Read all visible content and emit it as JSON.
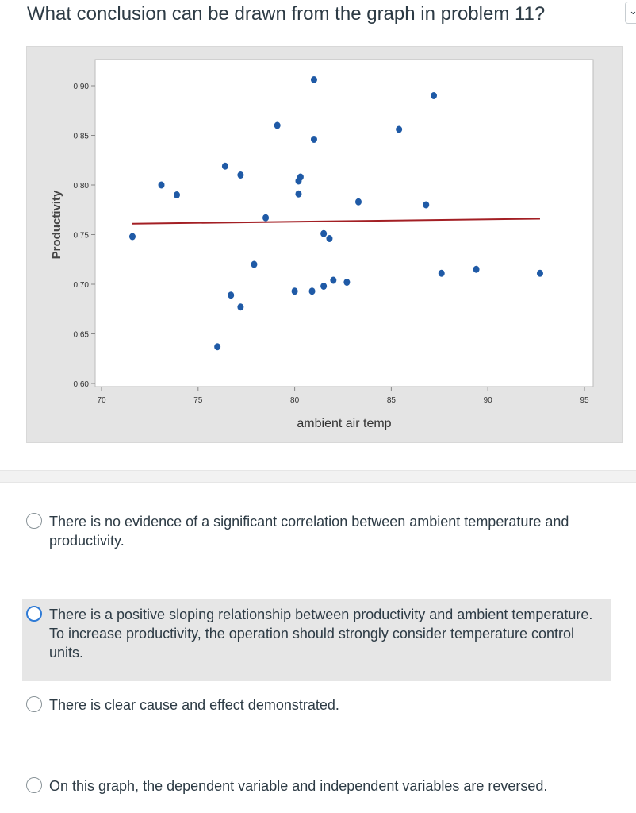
{
  "question": {
    "title": "What conclusion can be drawn from the graph in problem 11?"
  },
  "chart_data": {
    "type": "scatter",
    "xlabel": "ambient air temp",
    "ylabel": "Productivity",
    "xlim": [
      70,
      95
    ],
    "ylim": [
      0.6,
      0.9
    ],
    "xticks": [
      "70",
      "75",
      "80",
      "85",
      "90",
      "95"
    ],
    "yticks": [
      "0.60",
      "0.65",
      "0.70",
      "0.75",
      "0.80",
      "0.85",
      "0.90"
    ],
    "grid": false,
    "point_color": "#1f5aa6",
    "line_color": "#a31f24",
    "points": [
      [
        71.6,
        0.748
      ],
      [
        73.1,
        0.8
      ],
      [
        73.9,
        0.79
      ],
      [
        76.0,
        0.637
      ],
      [
        76.4,
        0.819
      ],
      [
        76.7,
        0.689
      ],
      [
        77.2,
        0.81
      ],
      [
        77.2,
        0.677
      ],
      [
        77.9,
        0.72
      ],
      [
        78.5,
        0.767
      ],
      [
        79.1,
        0.86
      ],
      [
        80.0,
        0.693
      ],
      [
        80.2,
        0.791
      ],
      [
        80.2,
        0.804
      ],
      [
        80.3,
        0.808
      ],
      [
        81.0,
        0.906
      ],
      [
        80.9,
        0.693
      ],
      [
        81.0,
        0.846
      ],
      [
        81.5,
        0.751
      ],
      [
        81.5,
        0.698
      ],
      [
        81.8,
        0.746
      ],
      [
        82.0,
        0.704
      ],
      [
        82.7,
        0.702
      ],
      [
        83.3,
        0.783
      ],
      [
        85.4,
        0.856
      ],
      [
        86.8,
        0.78
      ],
      [
        87.2,
        0.89
      ],
      [
        87.6,
        0.711
      ],
      [
        89.4,
        0.715
      ],
      [
        92.7,
        0.711
      ]
    ],
    "trend_line": {
      "x": [
        71.6,
        92.7
      ],
      "y": [
        0.761,
        0.766
      ]
    }
  },
  "options": [
    {
      "label": "There is no  evidence of a significant correlation between ambient temperature and productivity.",
      "selected": false
    },
    {
      "label": "There is a positive sloping relationship between productivity and ambient temperature. To increase productivity, the operation should strongly consider temperature control units.",
      "selected": false
    },
    {
      "label": "There is clear cause and effect demonstrated.",
      "selected": false
    },
    {
      "label": "On this graph, the dependent variable and independent variables are reversed.",
      "selected": false
    }
  ]
}
